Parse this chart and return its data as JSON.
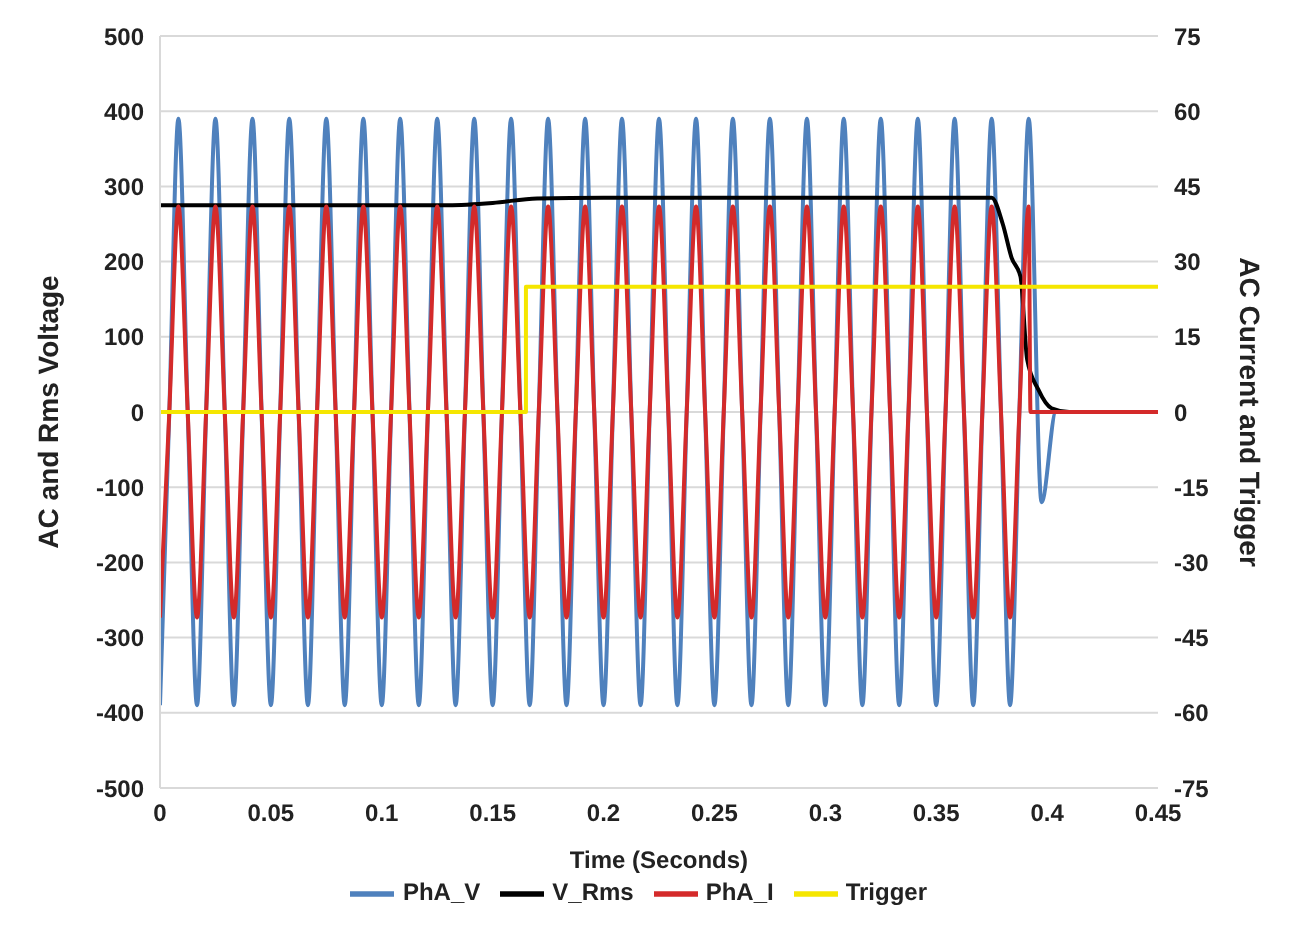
{
  "chart_data": {
    "type": "line",
    "xlabel": "Time (Seconds)",
    "ylabel": "AC and Rms Voltage",
    "y2label": "AC Current and Trigger",
    "xlim": [
      0,
      0.45
    ],
    "xticks": [
      0,
      0.05,
      0.1,
      0.15,
      0.2,
      0.25,
      0.3,
      0.35,
      0.4,
      0.45
    ],
    "ylim": [
      -500,
      500
    ],
    "yticks": [
      -500,
      -400,
      -300,
      -200,
      -100,
      0,
      100,
      200,
      300,
      400,
      500
    ],
    "y2lim": [
      -75,
      75
    ],
    "y2ticks": [
      -75,
      -60,
      -45,
      -30,
      -15,
      0,
      15,
      30,
      45,
      60,
      75
    ],
    "grid": "y",
    "legend": "bottom",
    "series": [
      {
        "name": "PhA_V",
        "color": "#4f81bd",
        "x": [
          0,
          0.0042,
          0.0083,
          0.0125,
          0.0167,
          0.0208,
          0.025,
          0.0292,
          0.0333,
          0.0375,
          0.0417,
          0.0458,
          0.05,
          0.0542,
          0.0583,
          0.0625,
          0.0667,
          0.0708,
          0.075,
          0.0792,
          0.0833,
          0.0875,
          0.0917,
          0.0958,
          0.1,
          0.1042,
          0.1083,
          0.1125,
          0.1167,
          0.1208,
          0.125,
          0.1292,
          0.1333,
          0.1375,
          0.1417,
          0.1458,
          0.15,
          0.1542,
          0.1583,
          0.1625,
          0.1667,
          0.1708,
          0.175,
          0.1792,
          0.1833,
          0.1875,
          0.1917,
          0.1958,
          0.2,
          0.2042,
          0.2083,
          0.2125,
          0.2167,
          0.2208,
          0.225,
          0.2292,
          0.2333,
          0.2375,
          0.2417,
          0.2458,
          0.25,
          0.2542,
          0.2583,
          0.2625,
          0.2667,
          0.2708,
          0.275,
          0.2792,
          0.2833,
          0.2875,
          0.2917,
          0.2958,
          0.3,
          0.3042,
          0.3083,
          0.3125,
          0.3167,
          0.3208,
          0.325,
          0.3292,
          0.3333,
          0.3375,
          0.3417,
          0.3458,
          0.35,
          0.3542,
          0.3583,
          0.3625,
          0.3667,
          0.3708,
          0.375,
          0.3792,
          0.3833,
          0.3875,
          0.3917,
          0.3975,
          0.404,
          0.45
        ],
        "values": [
          -390,
          0,
          390,
          0,
          -390,
          0,
          390,
          0,
          -390,
          0,
          390,
          0,
          -390,
          0,
          390,
          0,
          -390,
          0,
          390,
          0,
          -390,
          0,
          390,
          0,
          -390,
          0,
          390,
          0,
          -390,
          0,
          390,
          0,
          -390,
          0,
          390,
          0,
          -390,
          0,
          390,
          0,
          -390,
          0,
          390,
          0,
          -390,
          0,
          390,
          0,
          -390,
          0,
          390,
          0,
          -390,
          0,
          390,
          0,
          -390,
          0,
          390,
          0,
          -390,
          0,
          390,
          0,
          -390,
          0,
          390,
          0,
          -390,
          0,
          390,
          0,
          -390,
          0,
          390,
          0,
          -390,
          0,
          390,
          0,
          -390,
          0,
          390,
          0,
          -390,
          0,
          390,
          0,
          -390,
          0,
          390,
          0,
          -390,
          0,
          390,
          -120,
          0,
          0
        ]
      },
      {
        "name": "V_Rms",
        "color": "#000000",
        "x": [
          0,
          0.13,
          0.15,
          0.17,
          0.2,
          0.25,
          0.3,
          0.375,
          0.38,
          0.384,
          0.388,
          0.391,
          0.396,
          0.402,
          0.41,
          0.45
        ],
        "values": [
          275,
          275,
          278,
          284,
          285,
          285,
          285,
          285,
          250,
          205,
          180,
          70,
          30,
          5,
          0,
          0
        ]
      },
      {
        "name": "PhA_I",
        "color": "#d42a2a",
        "axis": "y2",
        "x": [
          0,
          0.0042,
          0.0083,
          0.0125,
          0.0167,
          0.0208,
          0.025,
          0.0292,
          0.0333,
          0.0375,
          0.0417,
          0.0458,
          0.05,
          0.0542,
          0.0583,
          0.0625,
          0.0667,
          0.0708,
          0.075,
          0.0792,
          0.0833,
          0.0875,
          0.0917,
          0.0958,
          0.1,
          0.1042,
          0.1083,
          0.1125,
          0.1167,
          0.1208,
          0.125,
          0.1292,
          0.1333,
          0.1375,
          0.1417,
          0.1458,
          0.15,
          0.1542,
          0.1583,
          0.1625,
          0.1667,
          0.1708,
          0.175,
          0.1792,
          0.1833,
          0.1875,
          0.1917,
          0.1958,
          0.2,
          0.2042,
          0.2083,
          0.2125,
          0.2167,
          0.2208,
          0.225,
          0.2292,
          0.2333,
          0.2375,
          0.2417,
          0.2458,
          0.25,
          0.2542,
          0.2583,
          0.2625,
          0.2667,
          0.2708,
          0.275,
          0.2792,
          0.2833,
          0.2875,
          0.2917,
          0.2958,
          0.3,
          0.3042,
          0.3083,
          0.3125,
          0.3167,
          0.3208,
          0.325,
          0.3292,
          0.3333,
          0.3375,
          0.3417,
          0.3458,
          0.35,
          0.3542,
          0.3583,
          0.3625,
          0.3667,
          0.3708,
          0.375,
          0.3792,
          0.3833,
          0.3875,
          0.3917,
          0.3925,
          0.45
        ],
        "values": [
          -41,
          0,
          41,
          0,
          -41,
          0,
          41,
          0,
          -41,
          0,
          41,
          0,
          -41,
          0,
          41,
          0,
          -41,
          0,
          41,
          0,
          -41,
          0,
          41,
          0,
          -41,
          0,
          41,
          0,
          -41,
          0,
          41,
          0,
          -41,
          0,
          41,
          0,
          -41,
          0,
          41,
          0,
          -41,
          0,
          41,
          0,
          -41,
          0,
          41,
          0,
          -41,
          0,
          41,
          0,
          -41,
          0,
          41,
          0,
          -41,
          0,
          41,
          0,
          -41,
          0,
          41,
          0,
          -41,
          0,
          41,
          0,
          -41,
          0,
          41,
          0,
          -41,
          0,
          41,
          0,
          -41,
          0,
          41,
          0,
          -41,
          0,
          41,
          0,
          -41,
          0,
          41,
          0,
          -41,
          0,
          41,
          0,
          -41,
          0,
          41,
          0,
          0
        ]
      },
      {
        "name": "Trigger",
        "type": "step",
        "color": "#f5e600",
        "axis": "y2",
        "x": [
          0,
          0.165,
          0.45
        ],
        "values": [
          0,
          25,
          25
        ]
      }
    ]
  }
}
